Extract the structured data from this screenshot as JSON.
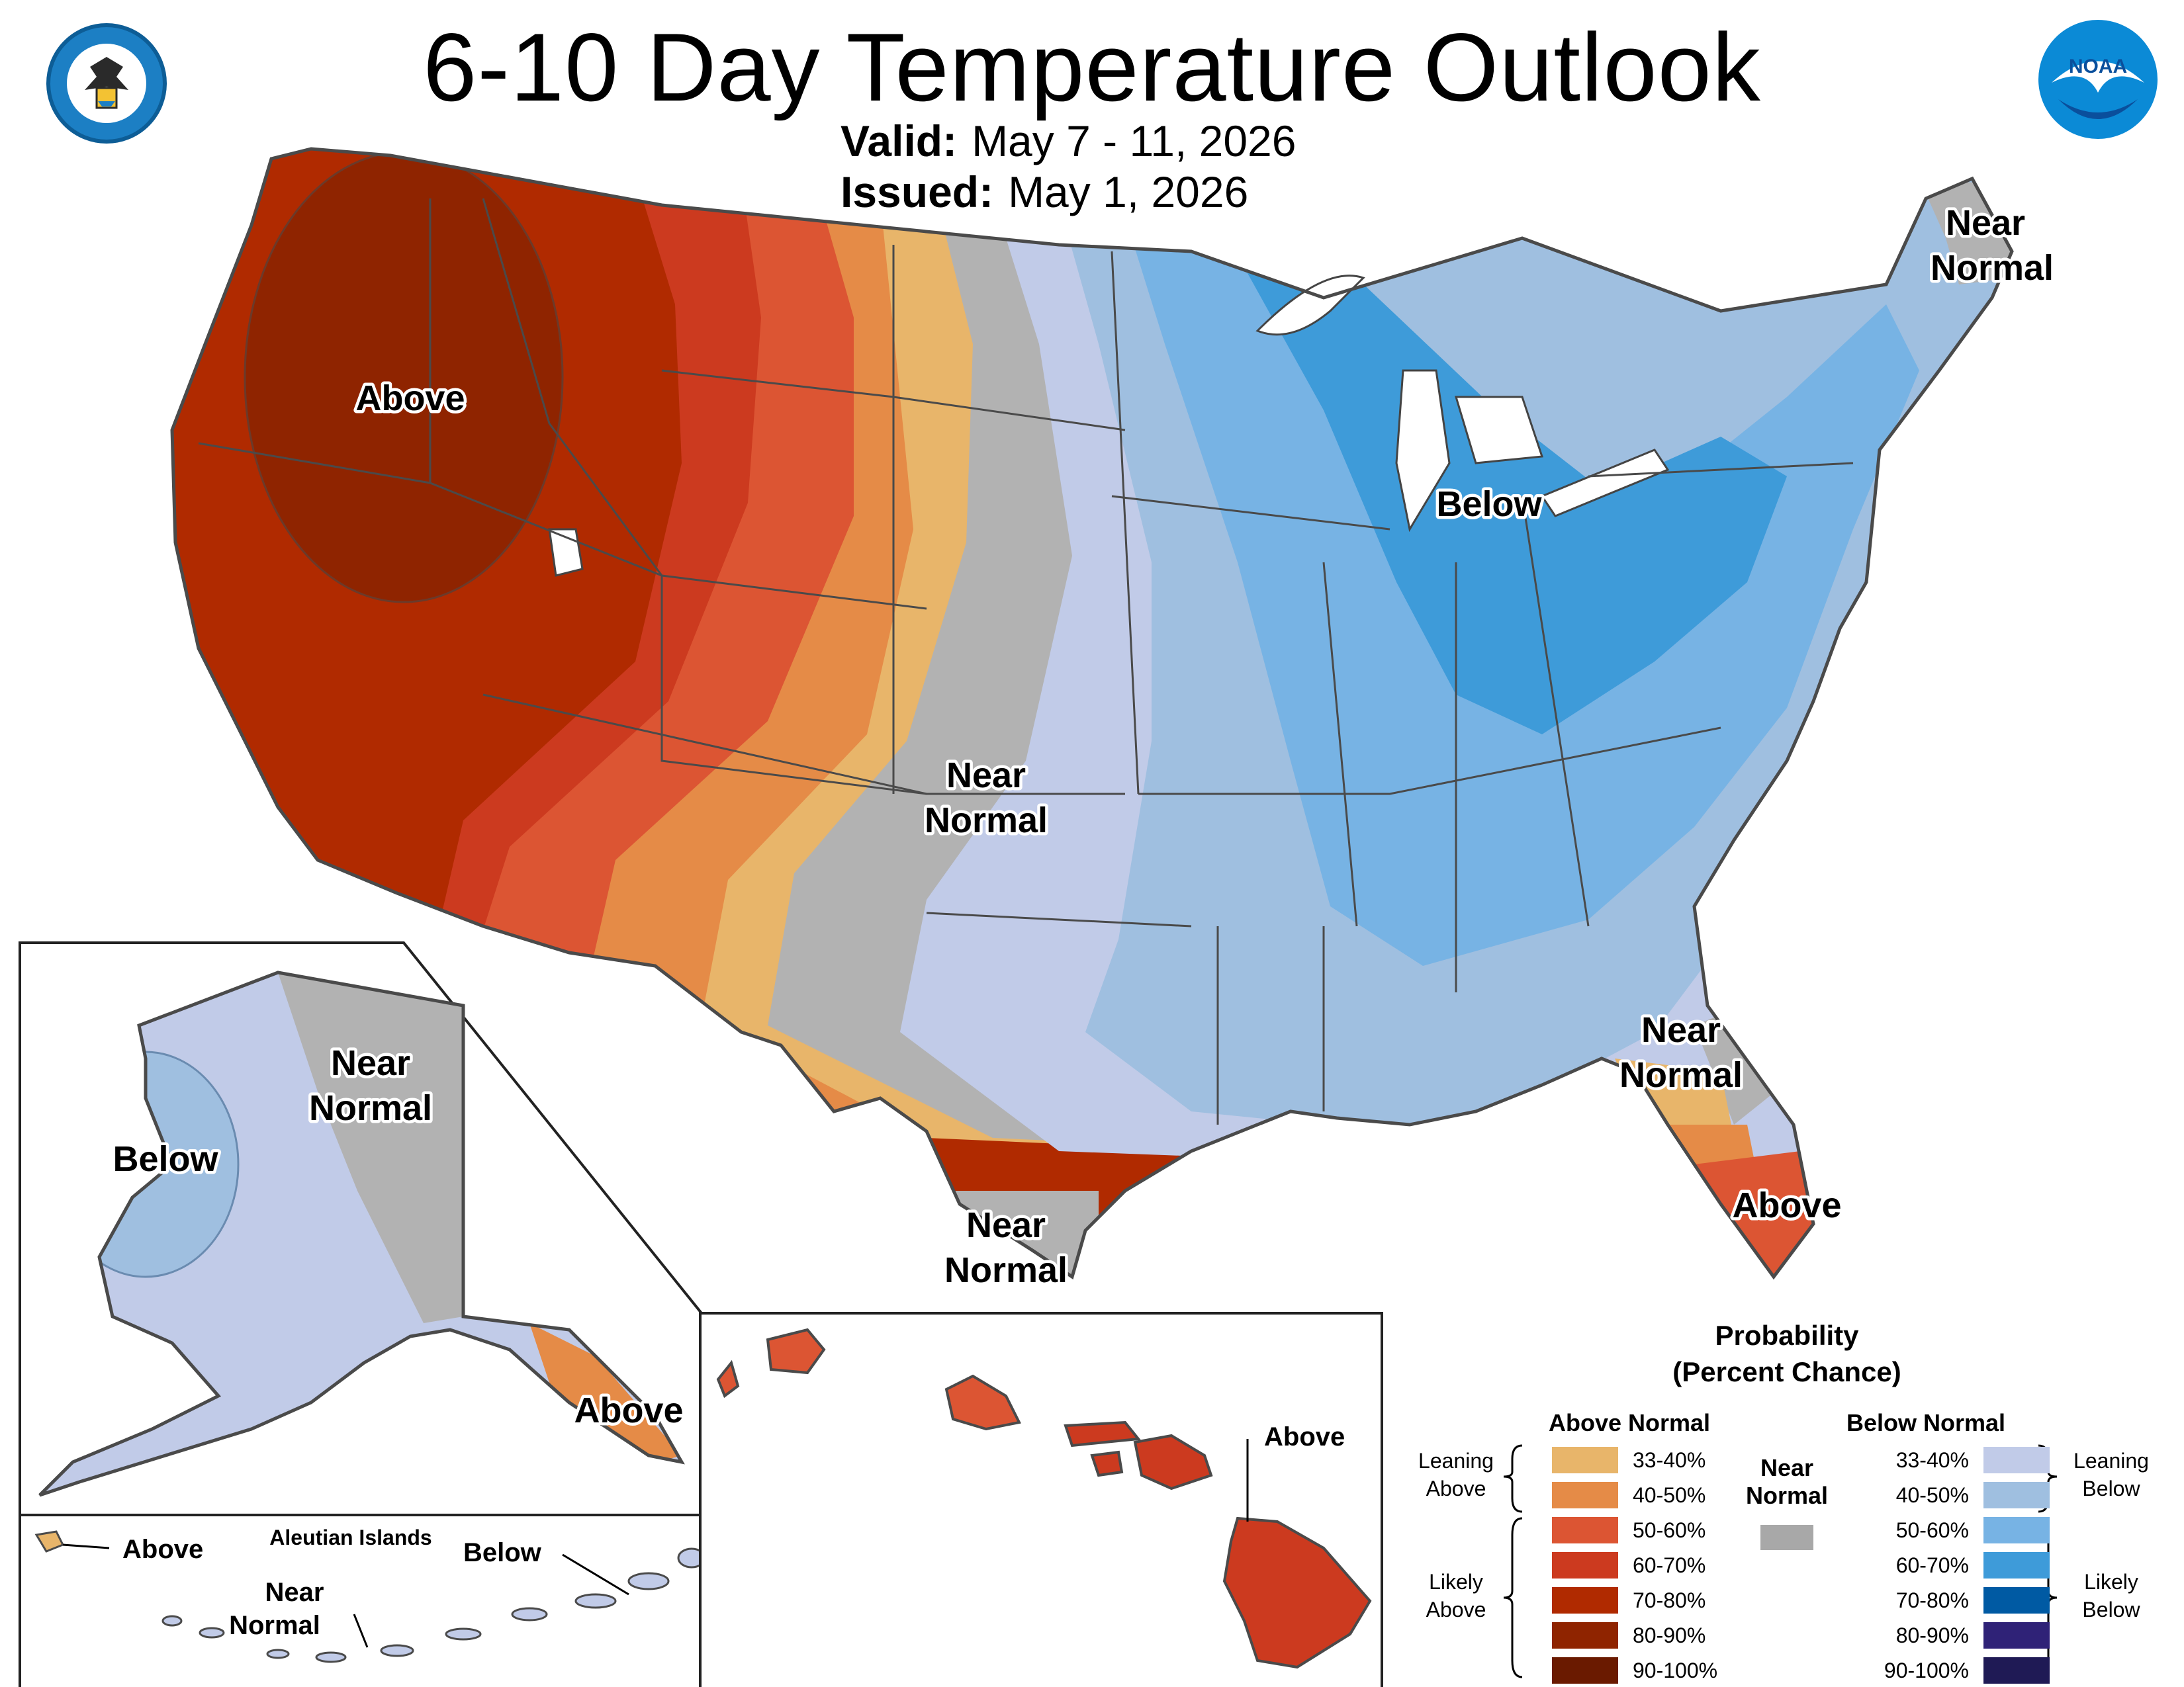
{
  "header": {
    "title": "6-10 Day Temperature Outlook",
    "valid_label": "Valid:",
    "valid_value": "May 7 - 11, 2026",
    "issued_label": "Issued:",
    "issued_value": "May 1, 2026"
  },
  "logos": {
    "left": "DEPARTMENT OF COMMERCE · UNITED STATES OF AMERICA",
    "right": "NOAA"
  },
  "map": {
    "labels": {
      "conus_above": "Above",
      "conus_below": "Below",
      "plains_near_normal": [
        "Near",
        "Normal"
      ],
      "ne_near_normal": [
        "Near",
        "Normal"
      ],
      "se_near_normal": [
        "Near",
        "Normal"
      ],
      "tx_near_normal": [
        "Near",
        "Normal"
      ],
      "fl_above": "Above",
      "ak_near_normal": [
        "Near",
        "Normal"
      ],
      "ak_below": "Below",
      "ak_above": "Above",
      "aleutian_title": "Aleutian Islands",
      "aleutian_above": "Above",
      "aleutian_below": "Below",
      "aleutian_near_normal": [
        "Near",
        "Normal"
      ],
      "hi_above": "Above"
    }
  },
  "legend": {
    "title_line1": "Probability",
    "title_line2": "(Percent Chance)",
    "above_header": "Above Normal",
    "below_header": "Below Normal",
    "near_normal_header": [
      "Near",
      "Normal"
    ],
    "near_normal_color": "#a8a8a8",
    "leaning_above": [
      "Leaning",
      "Above"
    ],
    "likely_above": [
      "Likely",
      "Above"
    ],
    "leaning_below": [
      "Leaning",
      "Below"
    ],
    "likely_below": [
      "Likely",
      "Below"
    ],
    "above_rows": [
      {
        "range": "33-40%",
        "color": "#e8b56a"
      },
      {
        "range": "40-50%",
        "color": "#e58b47"
      },
      {
        "range": "50-60%",
        "color": "#dc5533"
      },
      {
        "range": "60-70%",
        "color": "#cc3a1f"
      },
      {
        "range": "70-80%",
        "color": "#b02a00"
      },
      {
        "range": "80-90%",
        "color": "#8f2400"
      },
      {
        "range": "90-100%",
        "color": "#6a1a00"
      }
    ],
    "below_rows": [
      {
        "range": "33-40%",
        "color": "#c1cbe8"
      },
      {
        "range": "40-50%",
        "color": "#9fbfe0"
      },
      {
        "range": "50-60%",
        "color": "#77b3e4"
      },
      {
        "range": "60-70%",
        "color": "#3e9bd9"
      },
      {
        "range": "70-80%",
        "color": "#005aa3"
      },
      {
        "range": "80-90%",
        "color": "#2f2277"
      },
      {
        "range": "90-100%",
        "color": "#1f1a55"
      }
    ]
  }
}
